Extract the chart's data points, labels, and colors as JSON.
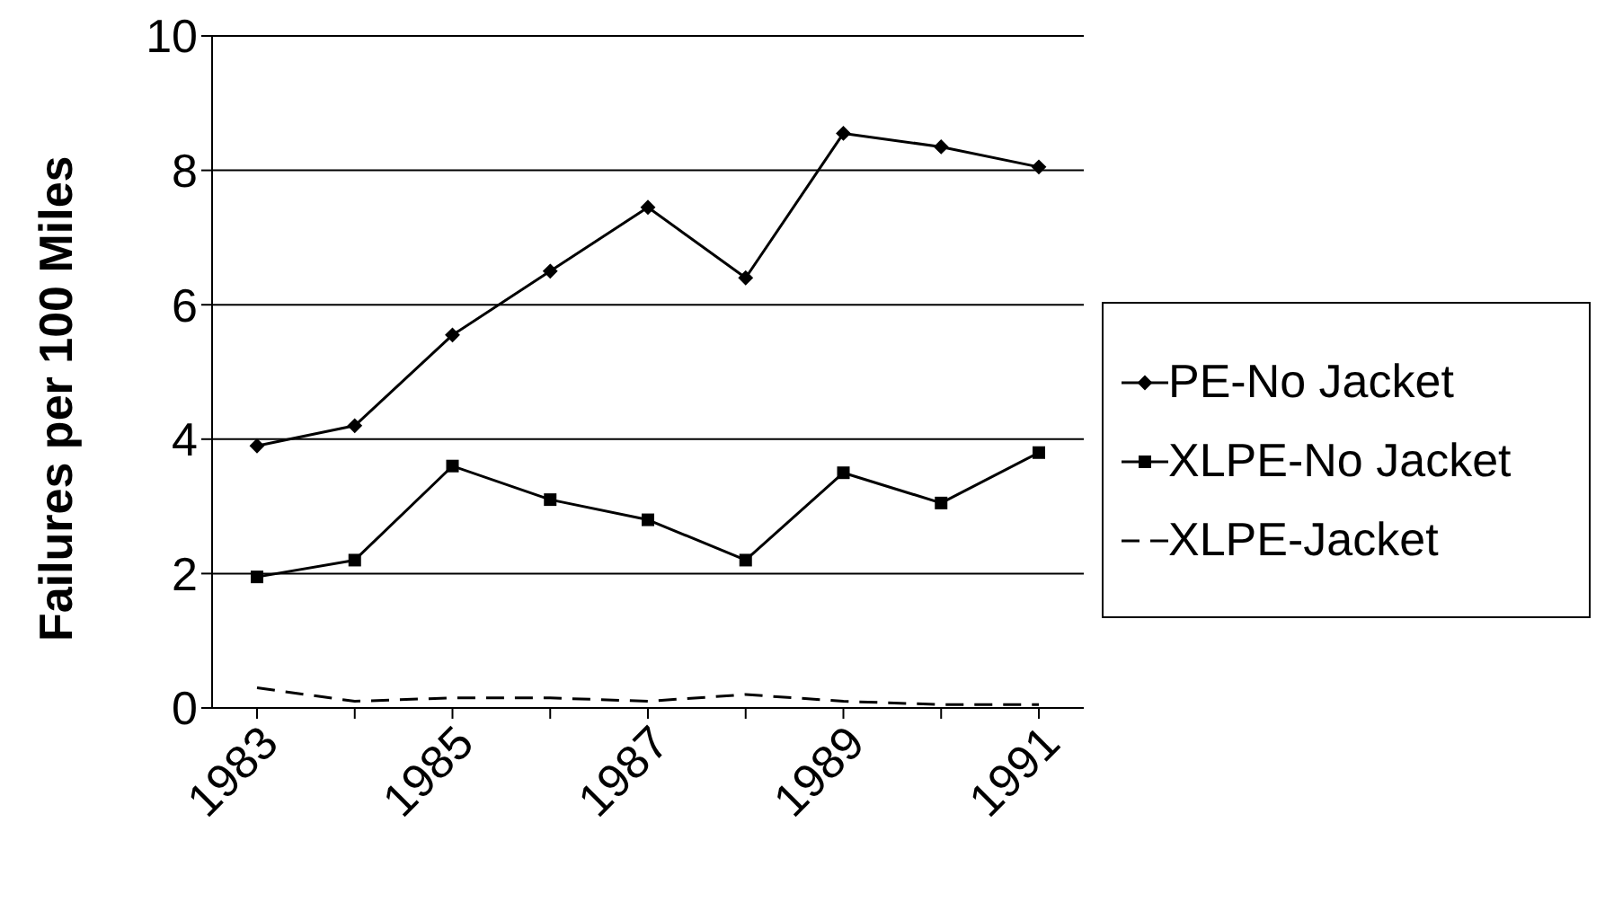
{
  "chart_data": {
    "type": "line",
    "ylabel": "Failures per 100 Miles",
    "categories": [
      "1983",
      null,
      "1985",
      null,
      "1987",
      null,
      "1989",
      null,
      "1991"
    ],
    "series": [
      {
        "name": "PE-No Jacket",
        "color": "#000000",
        "marker": "diamond",
        "line_style": "solid",
        "values": [
          3.9,
          4.2,
          5.55,
          6.5,
          7.45,
          6.4,
          8.55,
          8.35,
          8.05
        ]
      },
      {
        "name": "XLPE-No Jacket",
        "color": "#000000",
        "marker": "square",
        "line_style": "solid",
        "values": [
          1.95,
          2.2,
          3.6,
          3.1,
          2.8,
          2.2,
          3.5,
          3.05,
          3.8
        ]
      },
      {
        "name": "XLPE-Jacket",
        "color": "#000000",
        "marker": "none",
        "line_style": "dashed",
        "values": [
          0.3,
          0.1,
          0.15,
          0.15,
          0.1,
          0.2,
          0.1,
          0.05,
          0.05
        ]
      }
    ],
    "ylim": [
      0,
      10
    ],
    "yticks": [
      0,
      2,
      4,
      6,
      8,
      10
    ],
    "grid": "y",
    "legend": "right"
  }
}
